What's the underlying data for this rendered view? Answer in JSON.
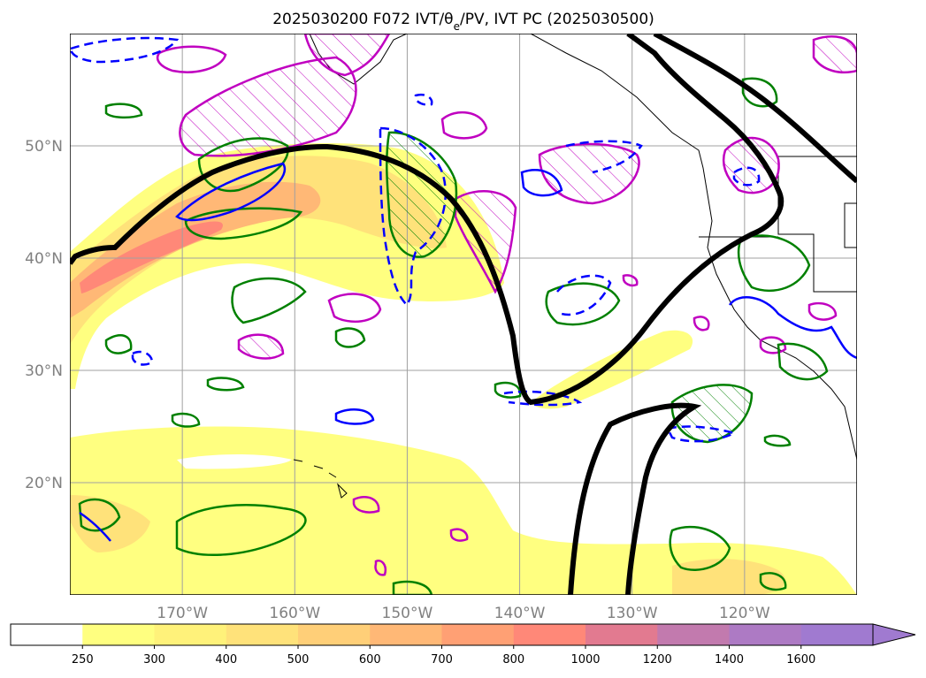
{
  "chart_data": {
    "type": "map",
    "title": "2025030200 F072 IVT/θe/PV, IVT PC (2025030500)",
    "map_extent": {
      "lon_min": -180,
      "lon_max": -110,
      "lat_min": 10,
      "lat_max": 60
    },
    "lat_ticks": [
      {
        "lat": 50,
        "label": "50°N"
      },
      {
        "lat": 40,
        "label": "40°N"
      },
      {
        "lat": 30,
        "label": "30°N"
      },
      {
        "lat": 20,
        "label": "20°N"
      }
    ],
    "lon_ticks": [
      {
        "lon": -170,
        "label": "170°W"
      },
      {
        "lon": -160,
        "label": "160°W"
      },
      {
        "lon": -150,
        "label": "150°W"
      },
      {
        "lon": -140,
        "label": "140°W"
      },
      {
        "lon": -130,
        "label": "130°W"
      },
      {
        "lon": -120,
        "label": "120°W"
      }
    ],
    "grid": true,
    "colorbar": {
      "position": "bottom",
      "extend": "max",
      "levels": [
        250,
        300,
        400,
        500,
        600,
        700,
        800,
        1000,
        1200,
        1400,
        1600
      ],
      "labels": [
        "250",
        "300",
        "400",
        "500",
        "600",
        "700",
        "800",
        "1000",
        "1200",
        "1400",
        "1600"
      ],
      "colors": [
        "#ffffff",
        "#ffff80",
        "#fff27a",
        "#ffe27a",
        "#ffcf78",
        "#ffb876",
        "#ffa074",
        "#ff8878",
        "#e27a90",
        "#c27aae",
        "#ad7ac4",
        "#a07ad0"
      ]
    },
    "colors": {
      "ivt_principal_component": "#000000",
      "theta_e": "#008000",
      "pv_solid": "#0000ff",
      "pv_dashed": "#0000ff",
      "magenta_hatched": "#c000c0",
      "coastline": "#000000"
    }
  }
}
